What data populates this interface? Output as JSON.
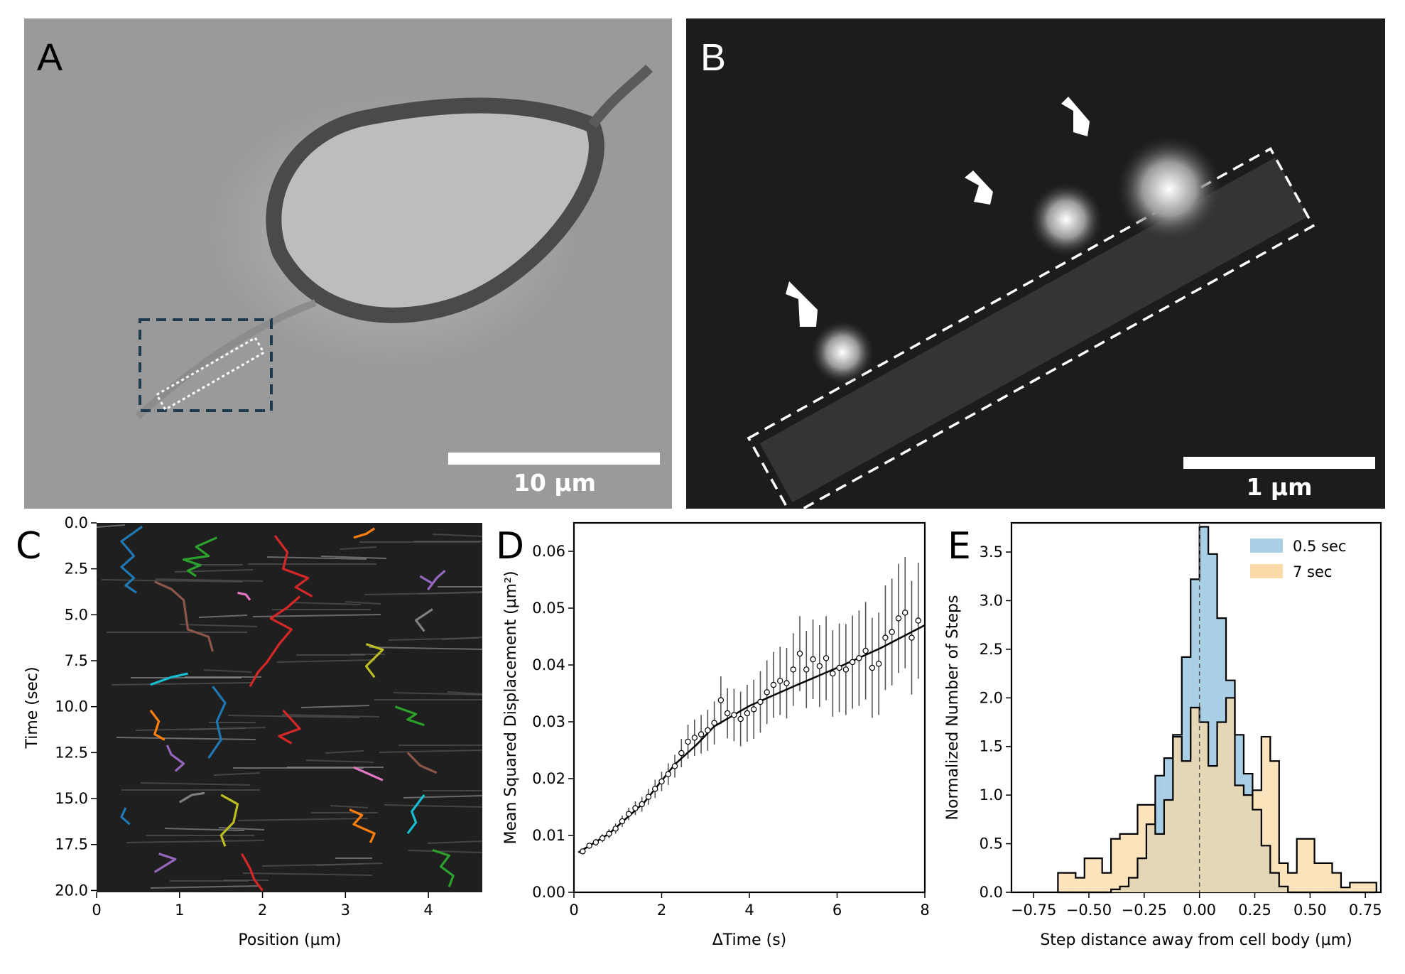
{
  "panel_a": {
    "label": "A",
    "scalebar_label": "10 µm"
  },
  "panel_b": {
    "label": "B",
    "scalebar_label": "1 µm"
  },
  "chart_data": [
    {
      "panel": "C",
      "type": "heatmap",
      "xlabel": "Position (µm)",
      "ylabel": "Time (sec)",
      "xlim": [
        0,
        4.65
      ],
      "ylim": [
        20.1,
        0
      ],
      "xticks": [
        0,
        1,
        2,
        3,
        4
      ],
      "yticks": [
        0.0,
        2.5,
        5.0,
        7.5,
        10.0,
        12.5,
        15.0,
        17.5,
        20.0
      ],
      "ytick_labels": [
        "0.0",
        "2.5",
        "5.0",
        "7.5",
        "10.0",
        "12.5",
        "15.0",
        "17.5",
        "20.0"
      ],
      "colors": {
        "blue": "#1f77b4",
        "orange": "#ff7f0e",
        "green": "#2ca02c",
        "red": "#d62728",
        "purple": "#9467bd",
        "brown": "#8c564b",
        "pink": "#e377c2",
        "gray": "#7f7f7f",
        "olive": "#bcbd22",
        "cyan": "#17becf"
      },
      "tracks": [
        {
          "color": "blue",
          "x": [
            0.55,
            0.3,
            0.45,
            0.3,
            0.45,
            0.35,
            0.48
          ],
          "y": [
            0.2,
            1.0,
            1.8,
            2.4,
            3.0,
            3.4,
            3.8
          ]
        },
        {
          "color": "green",
          "x": [
            1.45,
            1.2,
            1.35,
            1.05,
            1.25,
            1.1,
            1.2
          ],
          "y": [
            0.8,
            1.3,
            1.8,
            2.0,
            2.3,
            2.6,
            2.9
          ]
        },
        {
          "color": "red",
          "x": [
            2.15,
            2.3,
            2.25,
            2.55,
            2.4,
            2.6
          ],
          "y": [
            0.7,
            1.6,
            2.5,
            3.0,
            3.5,
            4.0
          ]
        },
        {
          "color": "orange",
          "x": [
            3.1,
            3.25,
            3.35
          ],
          "y": [
            0.8,
            0.6,
            0.3
          ]
        },
        {
          "color": "purple",
          "x": [
            3.9,
            4.05,
            4.0,
            4.1,
            4.2
          ],
          "y": [
            2.9,
            3.3,
            3.6,
            3.0,
            2.6
          ]
        },
        {
          "color": "pink",
          "x": [
            1.7,
            1.8,
            1.85
          ],
          "y": [
            3.8,
            3.9,
            4.2
          ]
        },
        {
          "color": "brown",
          "x": [
            0.7,
            0.9,
            1.05,
            1.1,
            1.35,
            1.4
          ],
          "y": [
            3.2,
            3.6,
            4.2,
            5.8,
            6.2,
            7.0
          ]
        },
        {
          "color": "red",
          "x": [
            2.45,
            2.3,
            2.1,
            2.35,
            2.2,
            2.05,
            1.95,
            1.85
          ],
          "y": [
            4.0,
            4.6,
            5.2,
            5.8,
            6.6,
            7.6,
            8.1,
            8.9
          ]
        },
        {
          "color": "gray",
          "x": [
            4.05,
            3.85,
            3.95
          ],
          "y": [
            4.7,
            5.3,
            5.9
          ]
        },
        {
          "color": "olive",
          "x": [
            3.25,
            3.45,
            3.25,
            3.35
          ],
          "y": [
            6.6,
            6.9,
            7.8,
            8.4
          ]
        },
        {
          "color": "cyan",
          "x": [
            0.65,
            0.9,
            1.1
          ],
          "y": [
            8.8,
            8.4,
            8.2
          ]
        },
        {
          "color": "orange",
          "x": [
            0.65,
            0.75,
            0.7,
            0.82
          ],
          "y": [
            10.2,
            10.8,
            11.5,
            11.8
          ]
        },
        {
          "color": "blue",
          "x": [
            1.4,
            1.55,
            1.45,
            1.5,
            1.35
          ],
          "y": [
            8.9,
            9.8,
            10.8,
            11.8,
            12.8
          ]
        },
        {
          "color": "green",
          "x": [
            3.6,
            3.85,
            3.75,
            3.95
          ],
          "y": [
            10.0,
            10.4,
            10.7,
            11.0
          ]
        },
        {
          "color": "red",
          "x": [
            2.25,
            2.45,
            2.2,
            2.35
          ],
          "y": [
            10.2,
            11.2,
            11.6,
            12.0
          ]
        },
        {
          "color": "purple",
          "x": [
            0.85,
            0.9,
            1.05,
            0.95
          ],
          "y": [
            12.1,
            12.6,
            13.1,
            13.5
          ]
        },
        {
          "color": "brown",
          "x": [
            3.75,
            3.9,
            4.1
          ],
          "y": [
            12.5,
            13.2,
            13.6
          ]
        },
        {
          "color": "pink",
          "x": [
            3.1,
            3.45
          ],
          "y": [
            13.3,
            14.0
          ]
        },
        {
          "color": "gray",
          "x": [
            1.0,
            1.15,
            1.3
          ],
          "y": [
            15.2,
            14.8,
            14.7
          ]
        },
        {
          "color": "olive",
          "x": [
            1.5,
            1.7,
            1.65,
            1.5,
            1.55
          ],
          "y": [
            14.8,
            15.3,
            16.3,
            17.0,
            17.6
          ]
        },
        {
          "color": "orange",
          "x": [
            3.05,
            3.2,
            3.1,
            3.35,
            3.3
          ],
          "y": [
            15.6,
            15.9,
            16.4,
            16.9,
            17.4
          ]
        },
        {
          "color": "cyan",
          "x": [
            3.95,
            3.8,
            3.85,
            3.75
          ],
          "y": [
            14.8,
            15.7,
            16.3,
            16.9
          ]
        },
        {
          "color": "blue",
          "x": [
            0.35,
            0.3,
            0.4
          ],
          "y": [
            15.5,
            16.0,
            16.4
          ]
        },
        {
          "color": "purple",
          "x": [
            0.7,
            0.95,
            0.75
          ],
          "y": [
            19.0,
            18.3,
            18.0
          ]
        },
        {
          "color": "red",
          "x": [
            1.75,
            1.85,
            1.9,
            2.0
          ],
          "y": [
            18.0,
            18.8,
            19.4,
            20.0
          ]
        },
        {
          "color": "green",
          "x": [
            4.05,
            4.25,
            4.15,
            4.3,
            4.25
          ],
          "y": [
            17.8,
            18.1,
            18.7,
            19.2,
            19.8
          ]
        }
      ]
    },
    {
      "panel": "D",
      "type": "scatter",
      "xlabel": "ΔTime (s)",
      "ylabel": "Mean Squared Displacement (µm²)",
      "xlim": [
        0,
        8
      ],
      "ylim": [
        0,
        0.065
      ],
      "xticks": [
        0,
        2,
        4,
        6,
        8
      ],
      "yticks": [
        0.0,
        0.01,
        0.02,
        0.03,
        0.04,
        0.05,
        0.06
      ],
      "ytick_labels": [
        "0.00",
        "0.01",
        "0.02",
        "0.03",
        "0.04",
        "0.05",
        "0.06"
      ],
      "x": [
        0.2,
        0.35,
        0.5,
        0.65,
        0.8,
        0.95,
        1.1,
        1.25,
        1.4,
        1.55,
        1.7,
        1.85,
        2.0,
        2.15,
        2.3,
        2.45,
        2.6,
        2.75,
        2.9,
        3.05,
        3.2,
        3.35,
        3.5,
        3.65,
        3.8,
        3.95,
        4.1,
        4.25,
        4.4,
        4.55,
        4.7,
        4.85,
        5.0,
        5.15,
        5.3,
        5.45,
        5.6,
        5.75,
        5.9,
        6.05,
        6.2,
        6.35,
        6.5,
        6.65,
        6.8,
        6.95,
        7.1,
        7.25,
        7.4,
        7.55,
        7.7,
        7.85
      ],
      "y": [
        0.0072,
        0.0082,
        0.0088,
        0.0095,
        0.0103,
        0.0112,
        0.0125,
        0.0138,
        0.0148,
        0.0155,
        0.0168,
        0.0182,
        0.0195,
        0.0208,
        0.0222,
        0.0245,
        0.0265,
        0.0272,
        0.0278,
        0.0285,
        0.0298,
        0.0338,
        0.0315,
        0.0312,
        0.0305,
        0.0315,
        0.0322,
        0.0335,
        0.0352,
        0.0365,
        0.0372,
        0.0368,
        0.0392,
        0.042,
        0.0392,
        0.041,
        0.0398,
        0.0412,
        0.0385,
        0.0395,
        0.0392,
        0.0405,
        0.0412,
        0.0425,
        0.0395,
        0.0402,
        0.0448,
        0.0458,
        0.0482,
        0.0492,
        0.0448,
        0.0478
      ],
      "err": [
        0.0004,
        0.0005,
        0.0006,
        0.0007,
        0.0008,
        0.0009,
        0.001,
        0.0011,
        0.0012,
        0.0013,
        0.0014,
        0.0016,
        0.0017,
        0.0019,
        0.002,
        0.0025,
        0.003,
        0.0032,
        0.0034,
        0.0036,
        0.0038,
        0.0042,
        0.0044,
        0.0046,
        0.0048,
        0.005,
        0.0052,
        0.0054,
        0.0056,
        0.0058,
        0.006,
        0.0062,
        0.0064,
        0.0066,
        0.0068,
        0.007,
        0.0072,
        0.0074,
        0.0076,
        0.0078,
        0.008,
        0.0082,
        0.0084,
        0.0086,
        0.0088,
        0.009,
        0.0092,
        0.0094,
        0.0096,
        0.0098,
        0.01,
        0.0102
      ],
      "fit": {
        "x": [
          0.1,
          0.8,
          1.6,
          2.3,
          2.8,
          3.2,
          4.0,
          5.0,
          6.0,
          7.0,
          8.0
        ],
        "y": [
          0.007,
          0.0103,
          0.0158,
          0.0225,
          0.026,
          0.0292,
          0.0328,
          0.0362,
          0.0395,
          0.043,
          0.047
        ]
      }
    },
    {
      "panel": "E",
      "type": "bar",
      "xlabel": "Step distance away from cell body (µm)",
      "ylabel": "Normalized Number of Steps",
      "xlim": [
        -0.85,
        0.82
      ],
      "ylim": [
        0,
        3.8
      ],
      "xticks": [
        -0.75,
        -0.5,
        -0.25,
        0.0,
        0.25,
        0.5,
        0.75
      ],
      "xtick_labels": [
        "−0.75",
        "−0.50",
        "−0.25",
        "0.00",
        "0.25",
        "0.50",
        "0.75"
      ],
      "yticks": [
        0.0,
        0.5,
        1.0,
        1.5,
        2.0,
        2.5,
        3.0,
        3.5
      ],
      "ytick_labels": [
        "0.0",
        "0.5",
        "1.0",
        "1.5",
        "2.0",
        "2.5",
        "3.0",
        "3.5"
      ],
      "bin_edges": [
        -0.64,
        -0.6,
        -0.56,
        -0.52,
        -0.48,
        -0.44,
        -0.4,
        -0.36,
        -0.32,
        -0.28,
        -0.24,
        -0.2,
        -0.16,
        -0.12,
        -0.08,
        -0.04,
        0.0,
        0.04,
        0.08,
        0.12,
        0.16,
        0.2,
        0.24,
        0.28,
        0.32,
        0.36,
        0.4,
        0.44,
        0.48,
        0.52,
        0.56,
        0.6,
        0.64,
        0.68,
        0.72,
        0.76,
        0.8
      ],
      "series": [
        {
          "name": "0.5 sec",
          "color": "#a8cfe6",
          "values": [
            0,
            0,
            0,
            0,
            0,
            0,
            0.03,
            0.06,
            0.15,
            0.35,
            0.7,
            1.2,
            1.38,
            1.62,
            2.42,
            3.22,
            3.76,
            3.48,
            2.82,
            2.18,
            1.62,
            1.22,
            0.85,
            0.48,
            0.2,
            0.06,
            0,
            0,
            0,
            0,
            0,
            0,
            0,
            0,
            0,
            0
          ]
        },
        {
          "name": "7 sec",
          "color": "#f9d9a6",
          "values": [
            0.2,
            0.2,
            0.15,
            0.35,
            0.35,
            0.2,
            0.55,
            0.6,
            0.6,
            0.9,
            0.9,
            0.6,
            0.95,
            1.6,
            1.35,
            1.9,
            1.75,
            1.3,
            1.75,
            2.0,
            1.1,
            1.0,
            1.05,
            1.6,
            1.35,
            0.3,
            0.2,
            0.55,
            0.55,
            0.3,
            0.3,
            0.2,
            0.05,
            0.1,
            0.1,
            0.1
          ]
        }
      ]
    }
  ]
}
